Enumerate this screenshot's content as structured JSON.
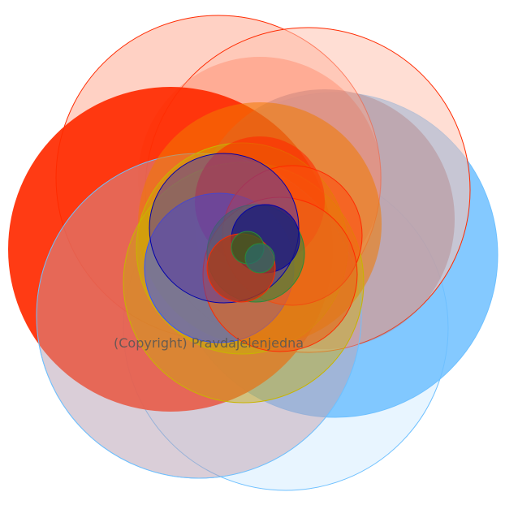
{
  "watermark": {
    "text": "(Copyright) Pravdajelenjedna"
  },
  "palette": {
    "background": "#ffffff",
    "red": "#ff2a00",
    "salmon": "#ff8a6a",
    "light_salmon": "#ffc2b0",
    "blue": "#6ec0ff",
    "light_blue": "#d6ecff",
    "royal_blue": "#3355ff",
    "gold": "#c8b400",
    "green": "#2a8a3a",
    "navy": "#0000aa"
  }
}
